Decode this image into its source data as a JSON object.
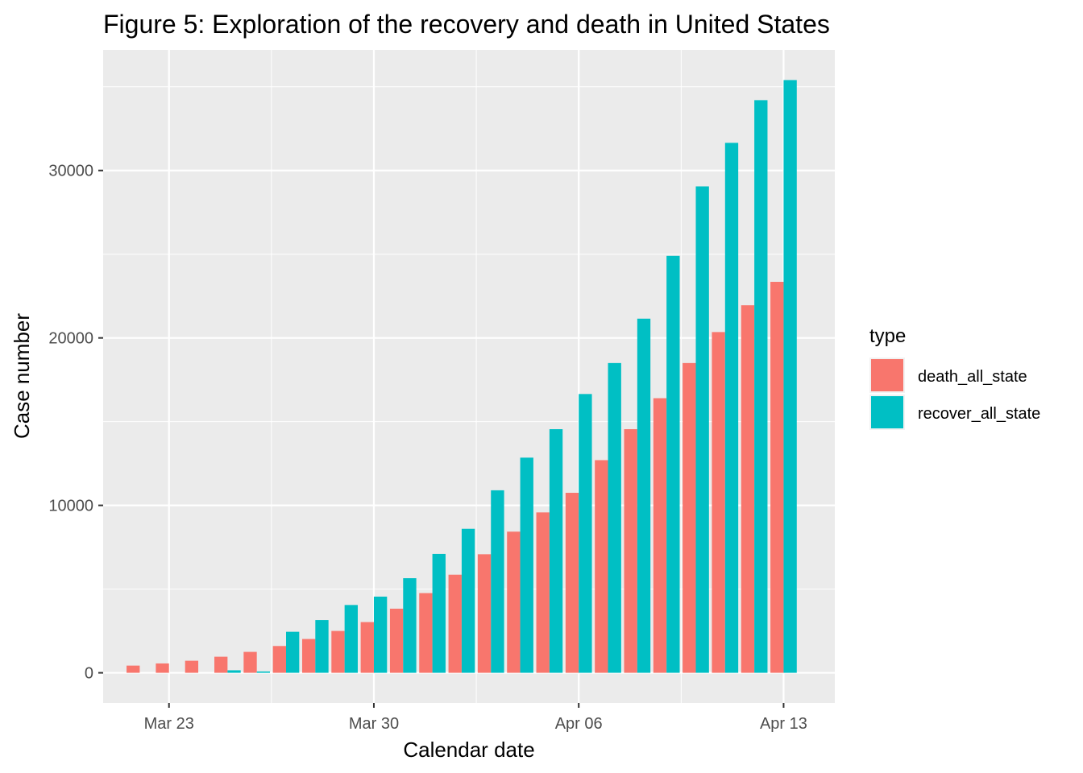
{
  "chart_data": {
    "type": "bar",
    "title": "Figure 5: Exploration of the recovery and death in United States",
    "xlabel": "Calendar date",
    "ylabel": "Case number",
    "x_dates": [
      "2020-03-22",
      "2020-03-23",
      "2020-03-24",
      "2020-03-25",
      "2020-03-26",
      "2020-03-27",
      "2020-03-28",
      "2020-03-29",
      "2020-03-30",
      "2020-03-31",
      "2020-04-01",
      "2020-04-02",
      "2020-04-03",
      "2020-04-04",
      "2020-04-05",
      "2020-04-06",
      "2020-04-07",
      "2020-04-08",
      "2020-04-09",
      "2020-04-10",
      "2020-04-11",
      "2020-04-12",
      "2020-04-13"
    ],
    "x_ticks": [
      {
        "date": "2020-03-23",
        "label": "Mar 23"
      },
      {
        "date": "2020-03-30",
        "label": "Mar 30"
      },
      {
        "date": "2020-04-06",
        "label": "Apr 06"
      },
      {
        "date": "2020-04-13",
        "label": "Apr 13"
      }
    ],
    "y_ticks": [
      0,
      10000,
      20000,
      30000
    ],
    "ylim": [
      -1800,
      37200
    ],
    "xlim": [
      "2020-03-20T18:00",
      "2020-04-14T18:00"
    ],
    "grid": true,
    "legend": {
      "title": "type",
      "position": "right"
    },
    "series": [
      {
        "name": "death_all_state",
        "color": "#F8766D",
        "values": [
          430,
          560,
          720,
          960,
          1250,
          1600,
          2020,
          2500,
          3030,
          3830,
          4760,
          5860,
          7080,
          8430,
          9580,
          10750,
          12700,
          14550,
          16400,
          18500,
          20350,
          21950,
          23350
        ]
      },
      {
        "name": "recover_all_state",
        "color": "#00BFC4",
        "values": [
          0,
          0,
          0,
          150,
          80,
          2450,
          3150,
          4050,
          4550,
          5650,
          7100,
          8600,
          10900,
          12850,
          14550,
          16650,
          18500,
          21150,
          24900,
          29050,
          31650,
          34200,
          35400
        ]
      }
    ]
  }
}
